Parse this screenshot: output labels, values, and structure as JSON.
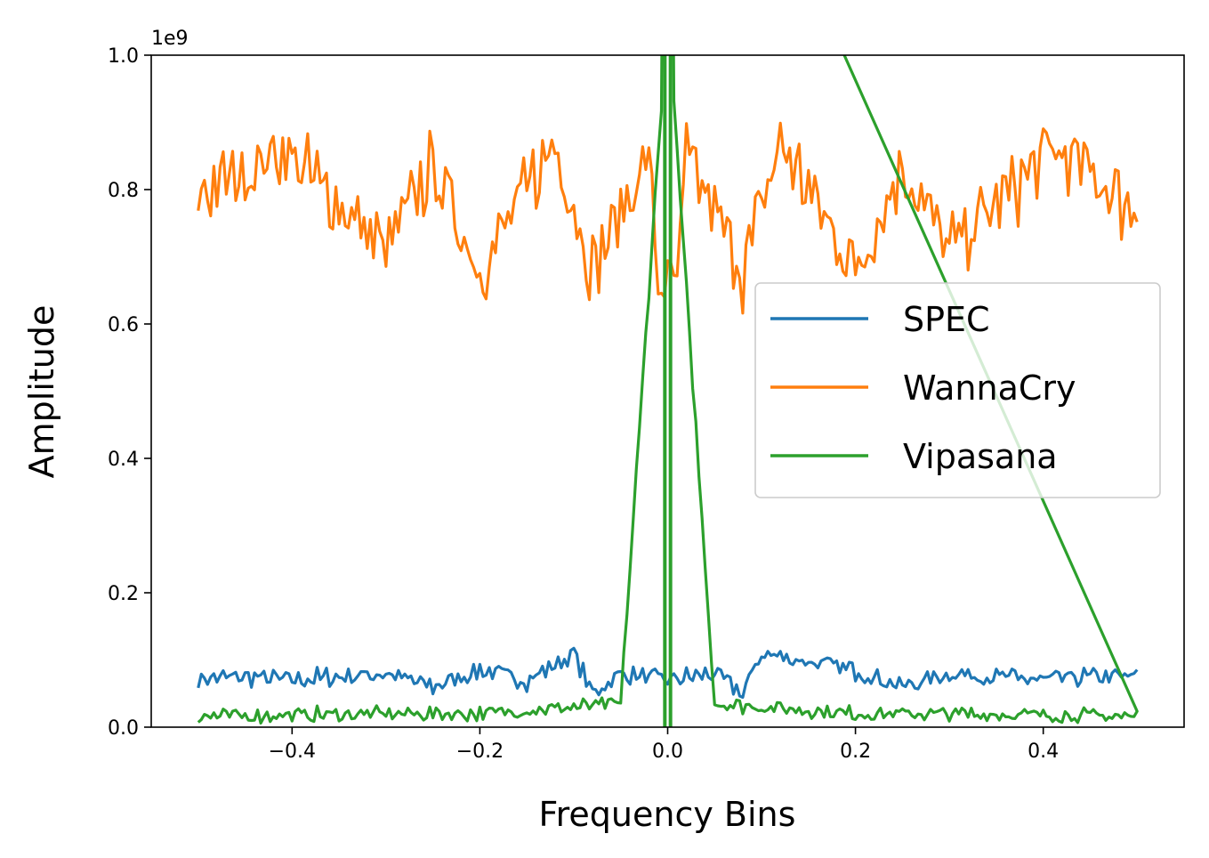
{
  "chart_data": {
    "type": "line",
    "title": "",
    "xlabel": "Frequency Bins",
    "ylabel": "Amplitude",
    "y_scale_label": "1e9",
    "xlim": [
      -0.55,
      0.55
    ],
    "ylim": [
      0.0,
      1.0
    ],
    "x_ticks": [
      -0.4,
      -0.2,
      0.0,
      0.2,
      0.4
    ],
    "x_tick_labels": [
      "−0.4",
      "−0.2",
      "0.0",
      "0.2",
      "0.4"
    ],
    "y_ticks": [
      0.0,
      0.2,
      0.4,
      0.6,
      0.8,
      1.0
    ],
    "y_tick_labels": [
      "0.0",
      "0.2",
      "0.4",
      "0.6",
      "0.8",
      "1.0"
    ],
    "grid": false,
    "legend_position": "center-right",
    "x_range": [
      -0.5,
      0.5
    ],
    "series": [
      {
        "name": "SPEC",
        "color": "#1f77b4",
        "baseline": 0.072,
        "values_sampled": [
          {
            "x": -0.5,
            "y": 0.072
          },
          {
            "x": -0.45,
            "y": 0.075
          },
          {
            "x": -0.4,
            "y": 0.07
          },
          {
            "x": -0.3,
            "y": 0.08
          },
          {
            "x": -0.25,
            "y": 0.06
          },
          {
            "x": -0.2,
            "y": 0.085
          },
          {
            "x": -0.15,
            "y": 0.07
          },
          {
            "x": -0.11,
            "y": 0.1
          },
          {
            "x": -0.1,
            "y": 0.11
          },
          {
            "x": -0.08,
            "y": 0.05
          },
          {
            "x": -0.05,
            "y": 0.08
          },
          {
            "x": 0.0,
            "y": 0.07
          },
          {
            "x": 0.05,
            "y": 0.08
          },
          {
            "x": 0.08,
            "y": 0.05
          },
          {
            "x": 0.1,
            "y": 0.11
          },
          {
            "x": 0.2,
            "y": 0.085
          },
          {
            "x": 0.25,
            "y": 0.06
          },
          {
            "x": 0.3,
            "y": 0.08
          },
          {
            "x": 0.4,
            "y": 0.07
          },
          {
            "x": 0.45,
            "y": 0.075
          },
          {
            "x": 0.5,
            "y": 0.075
          }
        ]
      },
      {
        "name": "WannaCry",
        "color": "#ff7f0e",
        "baseline": 0.76,
        "values_sampled": [
          {
            "x": -0.5,
            "y": 0.795
          },
          {
            "x": -0.45,
            "y": 0.825
          },
          {
            "x": -0.41,
            "y": 0.86
          },
          {
            "x": -0.3,
            "y": 0.71
          },
          {
            "x": -0.25,
            "y": 0.835
          },
          {
            "x": -0.2,
            "y": 0.68
          },
          {
            "x": -0.12,
            "y": 0.87
          },
          {
            "x": -0.08,
            "y": 0.68
          },
          {
            "x": -0.02,
            "y": 0.85
          },
          {
            "x": -0.01,
            "y": 0.66
          },
          {
            "x": 0.01,
            "y": 0.66
          },
          {
            "x": 0.02,
            "y": 0.85
          },
          {
            "x": 0.08,
            "y": 0.68
          },
          {
            "x": 0.12,
            "y": 0.87
          },
          {
            "x": 0.2,
            "y": 0.68
          },
          {
            "x": 0.25,
            "y": 0.835
          },
          {
            "x": 0.3,
            "y": 0.71
          },
          {
            "x": 0.41,
            "y": 0.86
          },
          {
            "x": 0.45,
            "y": 0.825
          },
          {
            "x": 0.5,
            "y": 0.765
          }
        ]
      },
      {
        "name": "Vipasana",
        "color": "#2ca02c",
        "baseline": 0.012,
        "peak_at_zero": "exceeds 1.0 (off-scale)",
        "values_sampled": [
          {
            "x": -0.5,
            "y": 0.016
          },
          {
            "x": -0.3,
            "y": 0.02
          },
          {
            "x": -0.2,
            "y": 0.02
          },
          {
            "x": -0.05,
            "y": 0.035
          },
          {
            "x": -0.003,
            "y": 1.0
          },
          {
            "x": 0.0,
            "y": 1.0
          },
          {
            "x": 0.003,
            "y": 1.0
          },
          {
            "x": 0.05,
            "y": 0.035
          },
          {
            "x": 0.2,
            "y": 0.02
          },
          {
            "x": 0.3,
            "y": 0.02
          },
          {
            "x": 0.5,
            "y": 0.016
          }
        ]
      }
    ]
  }
}
